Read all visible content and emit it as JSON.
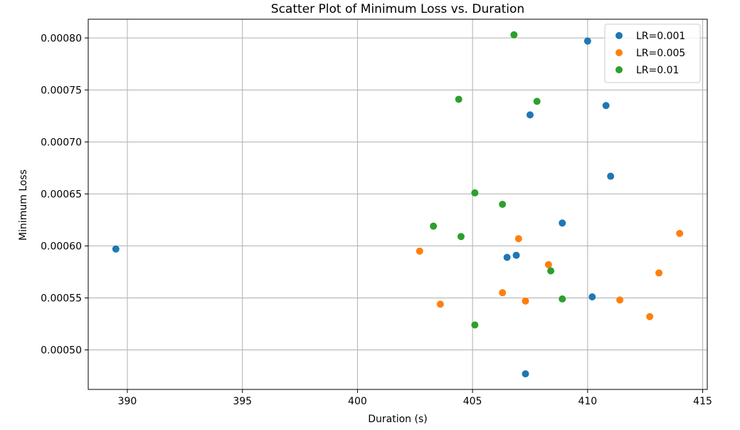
{
  "chart_data": {
    "type": "scatter",
    "title": "Scatter Plot of Minimum Loss vs. Duration",
    "xlabel": "Duration (s)",
    "ylabel": "Minimum Loss",
    "xlim": [
      388.3,
      415.2
    ],
    "ylim": [
      0.000462,
      0.000818
    ],
    "xticks": [
      390,
      395,
      400,
      405,
      410,
      415
    ],
    "xtick_labels": [
      "390",
      "395",
      "400",
      "405",
      "410",
      "415"
    ],
    "yticks": [
      0.0005,
      0.00055,
      0.0006,
      0.00065,
      0.0007,
      0.00075,
      0.0008
    ],
    "ytick_labels": [
      "0.00050",
      "0.00055",
      "0.00060",
      "0.00065",
      "0.00070",
      "0.00075",
      "0.00080"
    ],
    "grid": true,
    "legend_position": "top-right",
    "series": [
      {
        "name": "LR=0.001",
        "color": "#1f77b4",
        "points": [
          {
            "x": 389.5,
            "y": 0.000597
          },
          {
            "x": 406.5,
            "y": 0.000589
          },
          {
            "x": 406.9,
            "y": 0.000591
          },
          {
            "x": 407.5,
            "y": 0.000726
          },
          {
            "x": 407.3,
            "y": 0.000477
          },
          {
            "x": 408.9,
            "y": 0.000622
          },
          {
            "x": 410.0,
            "y": 0.000797
          },
          {
            "x": 410.2,
            "y": 0.000551
          },
          {
            "x": 410.8,
            "y": 0.000735
          },
          {
            "x": 411.0,
            "y": 0.000667
          }
        ]
      },
      {
        "name": "LR=0.005",
        "color": "#ff7f0e",
        "points": [
          {
            "x": 402.7,
            "y": 0.000595
          },
          {
            "x": 403.6,
            "y": 0.000544
          },
          {
            "x": 406.3,
            "y": 0.000555
          },
          {
            "x": 407.0,
            "y": 0.000607
          },
          {
            "x": 407.3,
            "y": 0.000547
          },
          {
            "x": 408.3,
            "y": 0.000582
          },
          {
            "x": 411.4,
            "y": 0.000548
          },
          {
            "x": 412.7,
            "y": 0.000532
          },
          {
            "x": 413.1,
            "y": 0.000574
          },
          {
            "x": 414.0,
            "y": 0.000612
          }
        ]
      },
      {
        "name": "LR=0.01",
        "color": "#2ca02c",
        "points": [
          {
            "x": 403.3,
            "y": 0.000619
          },
          {
            "x": 404.4,
            "y": 0.000741
          },
          {
            "x": 404.5,
            "y": 0.000609
          },
          {
            "x": 405.1,
            "y": 0.000651
          },
          {
            "x": 405.1,
            "y": 0.000524
          },
          {
            "x": 406.3,
            "y": 0.00064
          },
          {
            "x": 406.8,
            "y": 0.000803
          },
          {
            "x": 407.8,
            "y": 0.000739
          },
          {
            "x": 408.4,
            "y": 0.000576
          },
          {
            "x": 408.9,
            "y": 0.000549
          }
        ]
      }
    ]
  }
}
